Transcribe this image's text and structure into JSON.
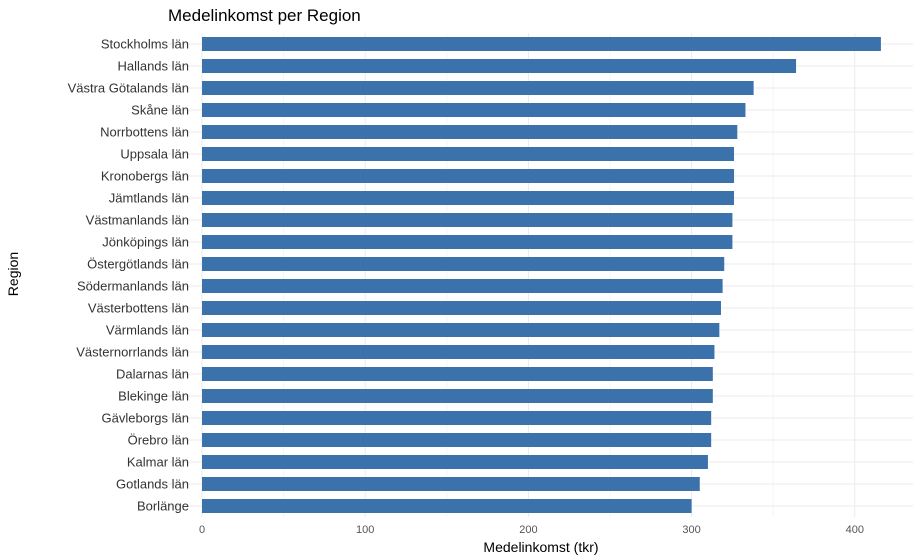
{
  "chart_data": {
    "type": "bar",
    "orientation": "horizontal",
    "title": "Medelinkomst per Region",
    "xlabel": "Medelinkomst (tkr)",
    "ylabel": "Region",
    "xlim": [
      0,
      420
    ],
    "x_ticks": [
      0,
      100,
      200,
      300,
      400
    ],
    "grid": true,
    "legend": "none",
    "bar_color": "#3b72ab",
    "categories": [
      "Stockholms län",
      "Hallands län",
      "Västra Götalands län",
      "Skåne län",
      "Norrbottens län",
      "Uppsala län",
      "Kronobergs län",
      "Jämtlands län",
      "Västmanlands län",
      "Jönköpings län",
      "Östergötlands län",
      "Södermanlands län",
      "Västerbottens län",
      "Värmlands län",
      "Västernorrlands län",
      "Dalarnas län",
      "Blekinge län",
      "Gävleborgs län",
      "Örebro län",
      "Kalmar län",
      "Gotlands län",
      "Borlänge"
    ],
    "values": [
      416,
      364,
      338,
      333,
      328,
      326,
      326,
      326,
      325,
      325,
      320,
      319,
      318,
      317,
      314,
      313,
      313,
      312,
      312,
      310,
      305,
      300
    ]
  }
}
